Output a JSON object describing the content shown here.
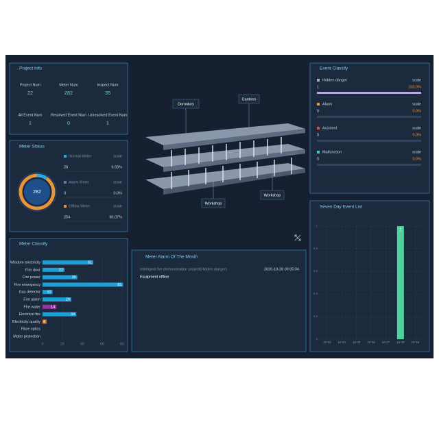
{
  "project_info": {
    "title": "Project Info",
    "items": [
      {
        "label": "Project Num",
        "value": 22
      },
      {
        "label": "Meter Num",
        "value": 282
      },
      {
        "label": "Inspect Num",
        "value": 35
      },
      {
        "label": "All Event Num",
        "value": 1
      },
      {
        "label": "Resolved Event Num",
        "value": 0
      },
      {
        "label": "Unresolved Event Num",
        "value": 1
      }
    ]
  },
  "meter_status": {
    "title": "Meter Status",
    "total": 282,
    "scale_label": "scale",
    "items": [
      {
        "label": "Normal Meter",
        "value": 28,
        "percent": "9.93%",
        "color": "#2fa8dc"
      },
      {
        "label": "Alarm Meter",
        "value": 0,
        "percent": "0.0%",
        "color": "#4f7fb8"
      },
      {
        "label": "Offline Meter",
        "value": 254,
        "percent": "90.07%",
        "color": "#e8943a"
      }
    ]
  },
  "meter_classify": {
    "title": "Meter Classify",
    "categories": [
      "Wisdom electricity",
      "Fire door",
      "Fire power",
      "Fire emergency",
      "Gas detector",
      "Fire alarm",
      "Fire water",
      "Electrical fire",
      "Electricity quality",
      "Fibre optics",
      "Motor protection"
    ],
    "values": [
      51,
      22,
      35,
      81,
      10,
      29,
      14,
      34,
      4,
      0,
      0
    ],
    "colors": [
      "#1e9fd6",
      "#1e9fd6",
      "#1e9fd6",
      "#1e9fd6",
      "#1e9fd6",
      "#1e9fd6",
      "#9b2fa8",
      "#1e9fd6",
      "#e07a2a",
      "#1e9fd6",
      "#1e9fd6"
    ],
    "xlim": [
      0,
      80
    ],
    "xticks": [
      0,
      20,
      40,
      60,
      80
    ]
  },
  "building": {
    "labels": [
      "Dormitory",
      "Canteen",
      "Workshop",
      "Workshop"
    ]
  },
  "alarm_month": {
    "title": "Meter Alarm Of The Month",
    "rows": [
      {
        "project": "Intelligent fire demonstration project(Hidden danger)",
        "time": "2020-10-28 09:05:04",
        "status": "Equipment offline"
      }
    ]
  },
  "event_classify": {
    "title": "Event Classify",
    "scale_label": "scale",
    "items": [
      {
        "label": "Hidden danger",
        "value": 1,
        "percent": "100.0%",
        "color": "#b9a9e3"
      },
      {
        "label": "Alarm",
        "value": 0,
        "percent": "0.0%",
        "color": "#e8943a"
      },
      {
        "label": "Accident",
        "value": 0,
        "percent": "0.0%",
        "color": "#e04848"
      },
      {
        "label": "Malfunction",
        "value": 0,
        "percent": "0.0%",
        "color": "#3ec8d8"
      }
    ]
  },
  "seven_day": {
    "title": "Seven Day Event List",
    "categories": [
      "10-23",
      "10-24",
      "10-25",
      "10-26",
      "10-27",
      "10-28",
      "10-29"
    ],
    "values": [
      0,
      0,
      0,
      0,
      0,
      1,
      0
    ],
    "color": "#4fd1a0",
    "ylim": [
      0,
      1
    ],
    "yticks": [
      0,
      0.2,
      0.4,
      0.6,
      0.8,
      1
    ]
  }
}
